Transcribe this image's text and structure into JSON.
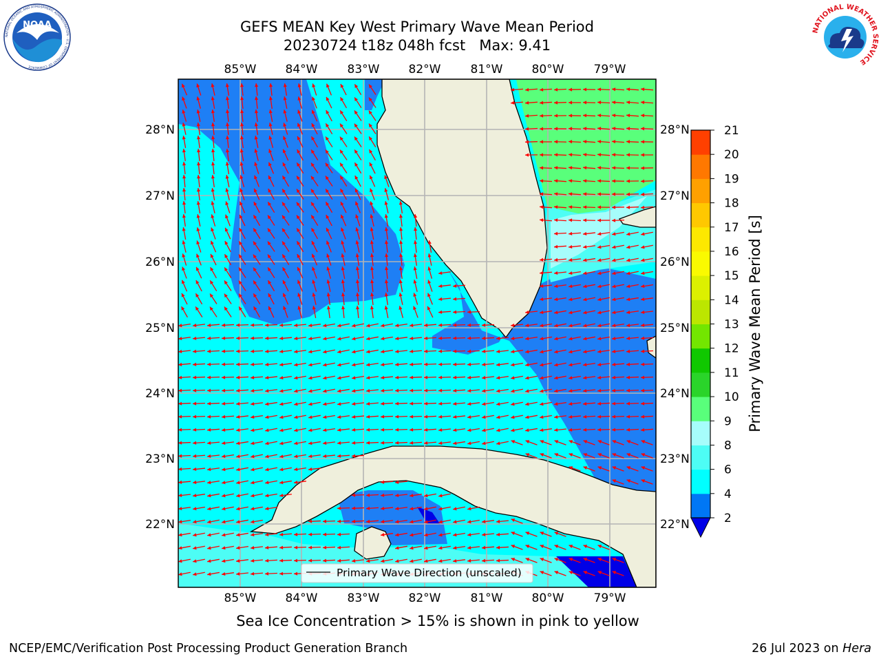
{
  "header": {
    "title_line1": "GEFS MEAN Key West Primary Wave Mean Period",
    "title_line2": "20230724 t18z 048h fcst   Max: 9.41"
  },
  "logos": {
    "left": {
      "name": "noaa-logo",
      "text": "NOAA",
      "ring_text": "NATIONAL OCEANIC AND ATMOSPHERIC ADMINISTRATION · U.S. DEPARTMENT OF COMMERCE"
    },
    "right": {
      "name": "nws-logo",
      "ring_text": "NATIONAL WEATHER SERVICE"
    }
  },
  "map": {
    "lon_labels": [
      "85°W",
      "84°W",
      "83°W",
      "82°W",
      "81°W",
      "80°W",
      "79°W"
    ],
    "lat_labels": [
      "28°N",
      "27°N",
      "26°N",
      "25°N",
      "24°N",
      "23°N",
      "22°N"
    ],
    "legend_label": "Primary Wave Direction (unscaled)",
    "colors": {
      "land": "#efefdc",
      "band_2_4": "#1e7ff5",
      "band_4_6": "#00ffff",
      "band_6_8": "#4dfdf5",
      "band_8_9": "#a6fdfb",
      "band_9_10": "#59ff7b",
      "below_2": "#0000e6",
      "arrow": "#ff0000",
      "grid": "#b4b4b4"
    }
  },
  "colorbar": {
    "label": "Primary Wave Mean Period [s]",
    "ticks": [
      "2",
      "4",
      "6",
      "8",
      "9",
      "10",
      "11",
      "12",
      "13",
      "14",
      "15",
      "16",
      "17",
      "18",
      "19",
      "20",
      "21"
    ],
    "colors": [
      "#0077f5",
      "#00ffff",
      "#4dfdf5",
      "#a6fdfb",
      "#59ff7b",
      "#2ad42a",
      "#10c800",
      "#73e600",
      "#bce600",
      "#dcf000",
      "#fafa00",
      "#fde800",
      "#ffc800",
      "#ffa000",
      "#ff7800",
      "#ff4000"
    ],
    "extend_color": "#0000e6"
  },
  "footer": {
    "caption": "Sea Ice Concentration > 15% is shown in pink to yellow",
    "credit": "NCEP/EMC/Verification Post Processing Product Generation Branch",
    "date": "26 Jul 2023 on",
    "host": "Hera"
  }
}
